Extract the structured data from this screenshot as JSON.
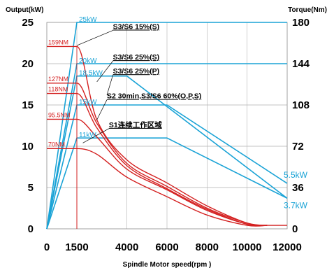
{
  "chart_data": {
    "type": "line",
    "title": "",
    "ylabel_left": "Output(kW)",
    "ylabel_right": "Torque(Nm)",
    "xlabel": "Spindle Motor speed(rpm )",
    "xlim": [
      0,
      12000
    ],
    "ylim_left": [
      0,
      25
    ],
    "ylim_right": [
      0,
      180
    ],
    "x_ticks": [
      "0",
      "1500",
      "4000",
      "6000",
      "8000",
      "10000",
      "12000"
    ],
    "x_tick_values": [
      0,
      1500,
      4000,
      6000,
      8000,
      10000,
      12000
    ],
    "y_left_ticks": [
      "0",
      "5",
      "10",
      "15",
      "20",
      "25"
    ],
    "y_left_tick_values": [
      0,
      5,
      10,
      15,
      20,
      25
    ],
    "y_right_ticks": [
      "0",
      "36",
      "72",
      "108",
      "144",
      "180"
    ],
    "y_right_tick_values": [
      0,
      36,
      72,
      108,
      144,
      180
    ],
    "grid": true,
    "colors": {
      "power": "#1aa3d6",
      "torque": "#d42020",
      "grid": "#b0b0b0"
    },
    "power_series": [
      {
        "x": [
          0,
          1500,
          12000
        ],
        "y": [
          0,
          25,
          25
        ]
      },
      {
        "x": [
          0,
          1500,
          3500,
          12000
        ],
        "y": [
          0,
          20,
          20,
          20
        ]
      },
      {
        "x": [
          0,
          1500,
          4000,
          12000
        ],
        "y": [
          0,
          18.5,
          18.5,
          3.7
        ]
      },
      {
        "x": [
          0,
          1500,
          6000,
          12000
        ],
        "y": [
          0,
          15,
          15,
          5.5
        ]
      },
      {
        "x": [
          0,
          1500,
          6000,
          12000
        ],
        "y": [
          0,
          11,
          11,
          3.7
        ]
      }
    ],
    "torque_series": [
      {
        "x": [
          0,
          1500,
          2500,
          4000,
          6000,
          8000,
          10000,
          11000
        ],
        "y": [
          159,
          159,
          95,
          60,
          40,
          20,
          5,
          3
        ]
      },
      {
        "x": [
          0,
          1500,
          2500,
          4000,
          6000,
          8000,
          10000,
          11000
        ],
        "y": [
          127,
          127,
          92,
          57,
          37,
          18,
          5,
          3
        ]
      },
      {
        "x": [
          0,
          1500,
          2500,
          4000,
          6000,
          8000,
          10000,
          11000
        ],
        "y": [
          118,
          118,
          88,
          55,
          35,
          17,
          4,
          3
        ]
      },
      {
        "x": [
          0,
          1500,
          2500,
          4000,
          6000,
          8000,
          10000,
          11000
        ],
        "y": [
          95.5,
          95.5,
          80,
          52,
          34,
          16,
          4,
          3
        ]
      },
      {
        "x": [
          0,
          1500,
          2500,
          4000,
          6000,
          8000,
          10000,
          11000
        ],
        "y": [
          70,
          70,
          65,
          45,
          28,
          12,
          3,
          3
        ]
      },
      {
        "x": [
          11000,
          12000
        ],
        "y": [
          3,
          3
        ]
      }
    ],
    "torque_labels": [
      "159NM",
      "127NM",
      "118NM",
      "95.5NM",
      "70NM"
    ],
    "power_labels": [
      "25kW",
      "20kW",
      "18.5kW",
      "15kW",
      "11kW"
    ],
    "rating_labels": [
      "S3/S6 15%(S)",
      "S3/S6 25%(S)",
      "S3/S6 25%(P)",
      "S2 30min,S3/S6 60%(O,P,S)",
      "S1连续工作区域"
    ],
    "end_labels": [
      "5.5kW",
      "3.7kW"
    ]
  }
}
